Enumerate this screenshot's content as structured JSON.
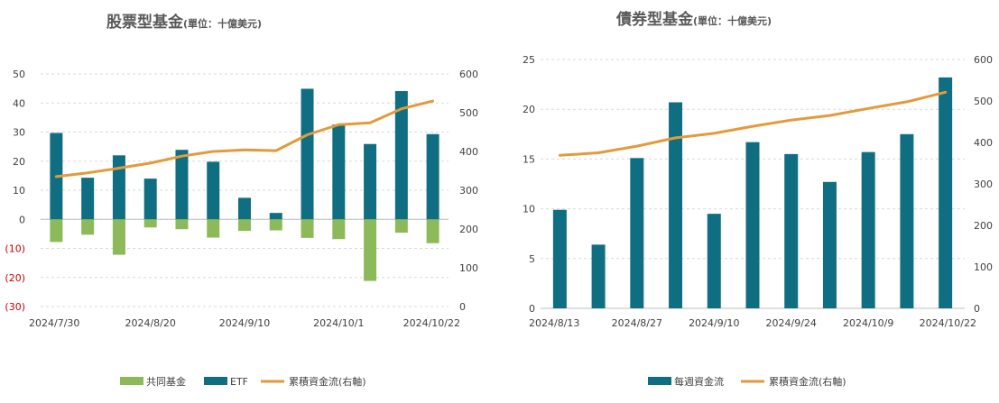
{
  "colors": {
    "etf": "#106e82",
    "mutual": "#8cba5a",
    "cumulative": "#e39a3c",
    "negative_label": "#cc0000",
    "tick": "#404040",
    "title": "#595959",
    "grid": "#d9d9d9"
  },
  "chart_data": [
    {
      "type": "bar",
      "title": "股票型基金",
      "subtitle": "(單位：十億美元)",
      "x_labels": [
        "2024/7/30",
        "2024/8/20",
        "2024/9/10",
        "2024/10/1",
        "2024/10/22"
      ],
      "x_label_positions": [
        0,
        3,
        6,
        9,
        12
      ],
      "left_axis": {
        "min": -30,
        "max": 50,
        "step": 10,
        "ticks": [
          "(30)",
          "(20)",
          "(10)",
          "0",
          "10",
          "20",
          "30",
          "40",
          "50"
        ]
      },
      "right_axis": {
        "min": 0,
        "max": 600,
        "step": 100,
        "ticks": [
          "0",
          "100",
          "200",
          "300",
          "400",
          "500",
          "600"
        ]
      },
      "series": [
        {
          "name": "共同基金",
          "kind": "bar",
          "axis": "left",
          "values": [
            -7.8,
            -5.3,
            -12.2,
            -2.8,
            -3.4,
            -6.3,
            -4.0,
            -3.8,
            -6.4,
            -6.8,
            -21.2,
            -4.6,
            -8.2
          ]
        },
        {
          "name": "ETF",
          "kind": "bar",
          "axis": "left",
          "values": [
            29.7,
            14.3,
            22.0,
            14.0,
            23.9,
            19.8,
            7.4,
            2.2,
            44.9,
            32.6,
            25.9,
            44.1,
            29.3
          ]
        },
        {
          "name": "累積資金流(右軸)",
          "kind": "line",
          "axis": "right",
          "values": [
            335,
            345,
            357,
            370,
            388,
            400,
            404,
            402,
            443,
            469,
            474,
            510,
            530
          ]
        }
      ],
      "legend": [
        "共同基金",
        "ETF",
        "累積資金流(右軸)"
      ]
    },
    {
      "type": "bar",
      "title": "債券型基金",
      "subtitle": "(單位：十億美元)",
      "x_labels": [
        "2024/8/13",
        "2024/8/27",
        "2024/9/10",
        "2024/9/24",
        "2024/10/9",
        "2024/10/22"
      ],
      "x_label_positions": [
        0,
        2,
        4,
        6,
        8,
        10
      ],
      "left_axis": {
        "min": 0,
        "max": 25,
        "step": 5,
        "ticks": [
          "0",
          "5",
          "10",
          "15",
          "20",
          "25"
        ]
      },
      "right_axis": {
        "min": 0,
        "max": 600,
        "step": 100,
        "ticks": [
          "0",
          "100",
          "200",
          "300",
          "400",
          "500",
          "600"
        ]
      },
      "series": [
        {
          "name": "每週資金流",
          "kind": "bar",
          "axis": "left",
          "values": [
            9.9,
            6.4,
            15.1,
            20.7,
            9.5,
            16.7,
            15.5,
            12.7,
            15.7,
            17.5,
            23.2
          ]
        },
        {
          "name": "累積資金流(右軸)",
          "kind": "line",
          "axis": "right",
          "values": [
            369,
            375,
            391,
            411,
            422,
            439,
            454,
            465,
            482,
            498,
            521
          ]
        }
      ],
      "legend": [
        "每週資金流",
        "累積資金流(右軸)"
      ]
    }
  ]
}
